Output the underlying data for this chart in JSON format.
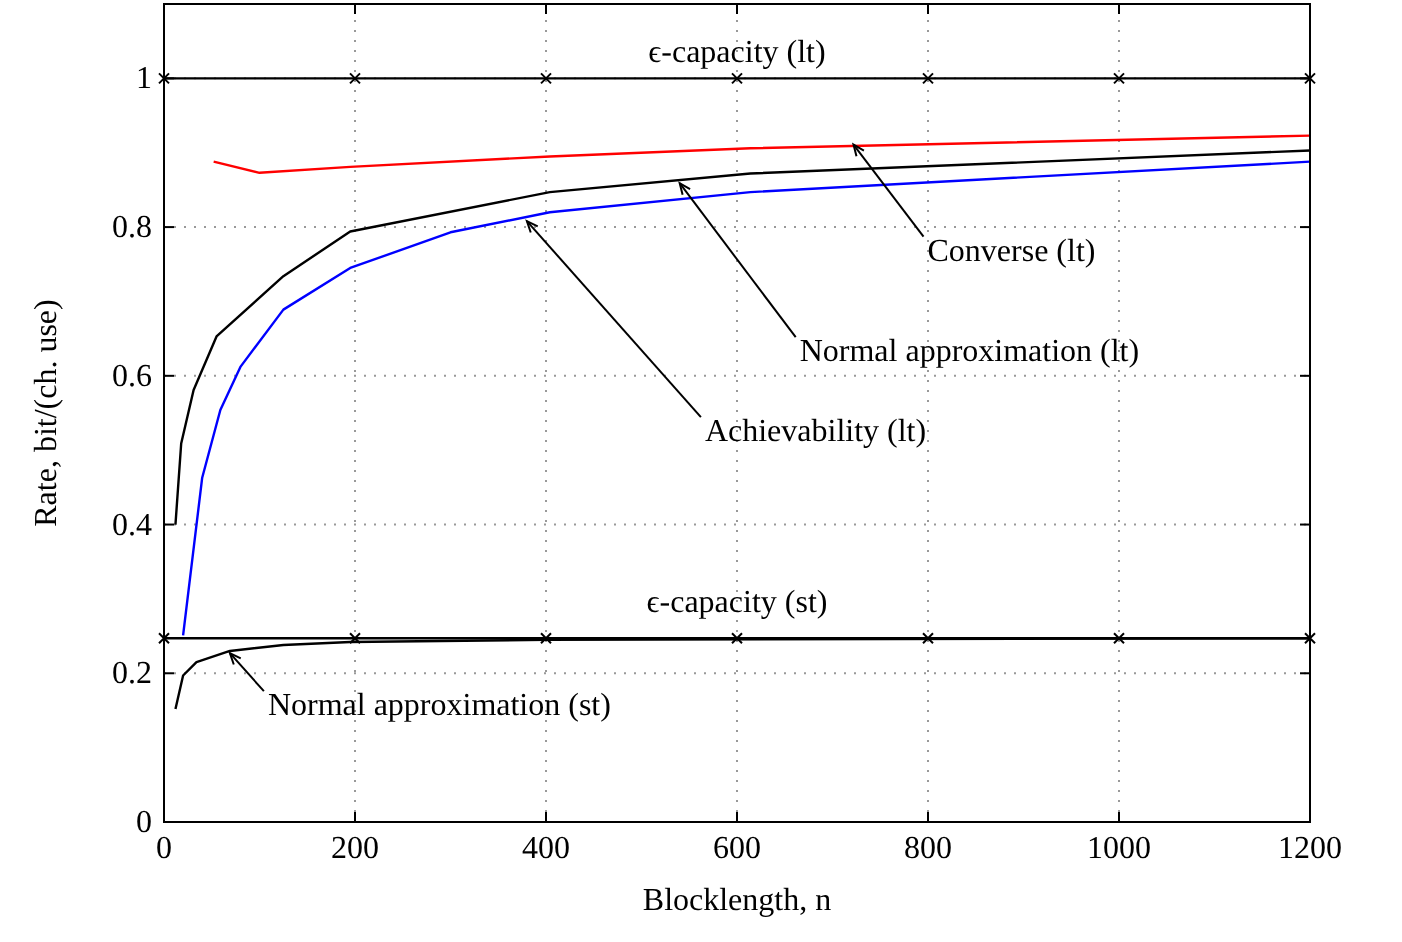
{
  "chart_data": {
    "type": "line",
    "xlabel": "Blocklength, n",
    "ylabel": "Rate, bit/(ch. use)",
    "xlim": [
      0,
      1200
    ],
    "ylim": [
      0,
      1.1
    ],
    "xticks": [
      0,
      200,
      400,
      600,
      800,
      1000,
      1200
    ],
    "yticks": [
      0,
      0.2,
      0.4,
      0.6,
      0.8,
      1
    ],
    "grid": true,
    "line_style": "solid",
    "series": [
      {
        "color": "#000000",
        "marker": "cross",
        "x": [
          0,
          200,
          400,
          600,
          800,
          1000,
          1200
        ],
        "values": [
          1,
          1,
          1,
          1,
          1,
          1,
          1
        ]
      },
      {
        "color": "#ff0000",
        "marker": "none",
        "x": [
          52,
          100,
          195,
          404,
          614,
          1200
        ],
        "values": [
          0.888,
          0.873,
          0.881,
          0.895,
          0.906,
          0.923
        ]
      },
      {
        "color": "#000000",
        "marker": "none",
        "x": [
          12,
          18,
          31,
          55,
          125,
          195,
          404,
          614,
          1200
        ],
        "values": [
          0.4,
          0.509,
          0.581,
          0.653,
          0.734,
          0.794,
          0.847,
          0.872,
          0.903
        ]
      },
      {
        "color": "#0000ff",
        "marker": "none",
        "x": [
          20,
          40,
          59,
          80,
          125,
          195,
          300,
          404,
          614,
          1200
        ],
        "values": [
          0.251,
          0.463,
          0.554,
          0.612,
          0.689,
          0.745,
          0.793,
          0.82,
          0.847,
          0.888
        ]
      },
      {
        "color": "#000000",
        "marker": "cross",
        "x": [
          0,
          200,
          400,
          600,
          800,
          1000,
          1200
        ],
        "values": [
          0.247,
          0.247,
          0.247,
          0.247,
          0.247,
          0.247,
          0.247
        ]
      },
      {
        "color": "#000000",
        "marker": "none",
        "x": [
          12,
          20,
          34,
          69,
          125,
          195,
          400,
          1200
        ],
        "values": [
          0.152,
          0.197,
          0.215,
          0.23,
          0.238,
          0.242,
          0.245,
          0.247
        ]
      }
    ],
    "annotations": [
      {
        "text": "ϵ-capacity (lt)",
        "x": 600,
        "y": 1
      },
      {
        "text": "Converse (lt)",
        "x": 722,
        "y": 0.911
      },
      {
        "text": "Normal approximation (lt)",
        "x": 540,
        "y": 0.859
      },
      {
        "text": "Achievability (lt)",
        "x": 380,
        "y": 0.808
      },
      {
        "text": "ϵ-capacity (st)",
        "x": 600,
        "y": 0.247
      },
      {
        "text": "Normal approximation (st)",
        "x": 69,
        "y": 0.227
      }
    ]
  }
}
